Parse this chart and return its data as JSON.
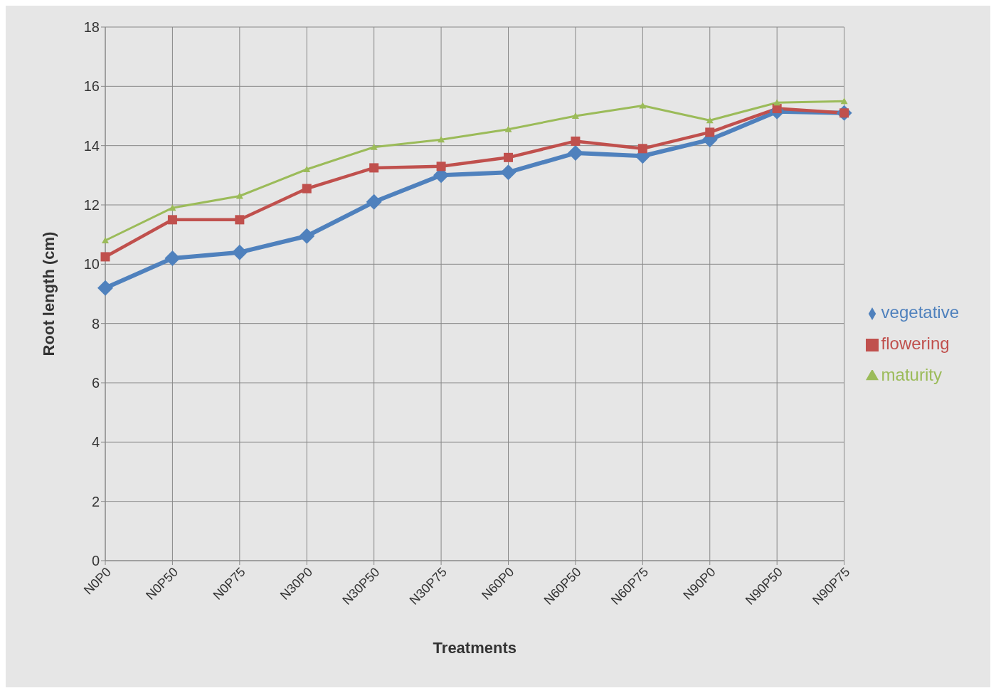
{
  "chart_data": {
    "type": "line",
    "xlabel": "Treatments",
    "ylabel": "Root length (cm)",
    "categories": [
      "N0P0",
      "N0P50",
      "N0P75",
      "N30P0",
      "N30P50",
      "N30P75",
      "N60P0",
      "N60P50",
      "N60P75",
      "N90P0",
      "N90P50",
      "N90P75"
    ],
    "series": [
      {
        "name": "vegetative",
        "color": "#4f81bd",
        "marker": "diamond",
        "values": [
          9.2,
          10.2,
          10.4,
          10.95,
          12.1,
          13.0,
          13.1,
          13.75,
          13.65,
          14.2,
          15.15,
          15.1
        ]
      },
      {
        "name": "flowering",
        "color": "#c0504d",
        "marker": "square",
        "values": [
          10.25,
          11.5,
          11.5,
          12.55,
          13.25,
          13.3,
          13.6,
          14.15,
          13.9,
          14.45,
          15.25,
          15.1
        ]
      },
      {
        "name": "maturity",
        "color": "#9bbb59",
        "marker": "triangle",
        "values": [
          10.8,
          11.9,
          12.3,
          13.2,
          13.95,
          14.2,
          14.55,
          15.0,
          15.35,
          14.85,
          15.45,
          15.5
        ]
      }
    ],
    "ylim": [
      0,
      18
    ],
    "yticks": [
      0,
      2,
      4,
      6,
      8,
      10,
      12,
      14,
      16,
      18
    ],
    "grid": true,
    "legend": "right"
  }
}
